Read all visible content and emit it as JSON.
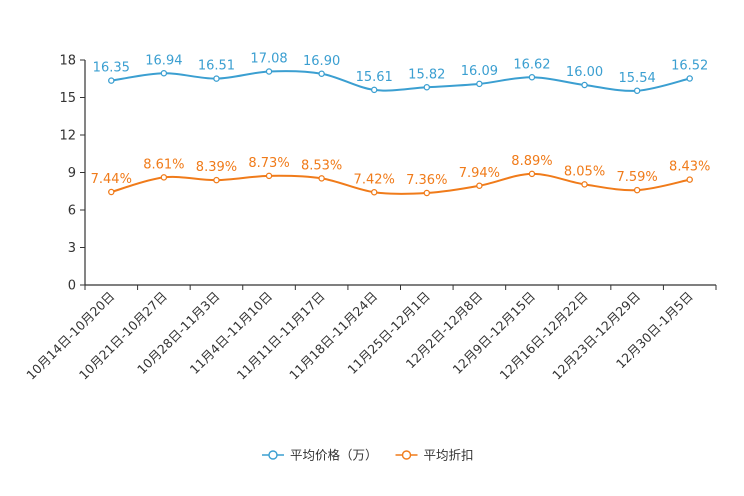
{
  "chart_data": {
    "type": "line",
    "title": "",
    "xlabel": "",
    "ylabel": "",
    "ylim": [
      0,
      18
    ],
    "yticks": [
      0,
      3,
      6,
      9,
      12,
      15,
      18
    ],
    "grid": false,
    "legend_position": "bottom-center",
    "categories": [
      "10月14日-10月20日",
      "10月21日-10月27日",
      "10月28日-11月3日",
      "11月4日-11月10日",
      "11月11日-11月17日",
      "11月18日-11月24日",
      "11月25日-12月1日",
      "12月2日-12月8日",
      "12月9日-12月15日",
      "12月16日-12月22日",
      "12月23日-12月29日",
      "12月30日-1月5日"
    ],
    "series": [
      {
        "name": "平均价格（万）",
        "color": "#3b9fd1",
        "values": [
          16.35,
          16.94,
          16.51,
          17.08,
          16.9,
          15.61,
          15.82,
          16.09,
          16.62,
          16.0,
          15.54,
          16.52
        ],
        "labels": [
          "16.35",
          "16.94",
          "16.51",
          "17.08",
          "16.90",
          "15.61",
          "15.82",
          "16.09",
          "16.62",
          "16.00",
          "15.54",
          "16.52"
        ]
      },
      {
        "name": "平均折扣",
        "color": "#f07b1a",
        "values": [
          7.44,
          8.61,
          8.39,
          8.73,
          8.53,
          7.42,
          7.36,
          7.94,
          8.89,
          8.05,
          7.59,
          8.43
        ],
        "labels": [
          "7.44%",
          "8.61%",
          "8.39%",
          "8.73%",
          "8.53%",
          "7.42%",
          "7.36%",
          "7.94%",
          "8.89%",
          "8.05%",
          "7.59%",
          "8.43%"
        ]
      }
    ]
  }
}
